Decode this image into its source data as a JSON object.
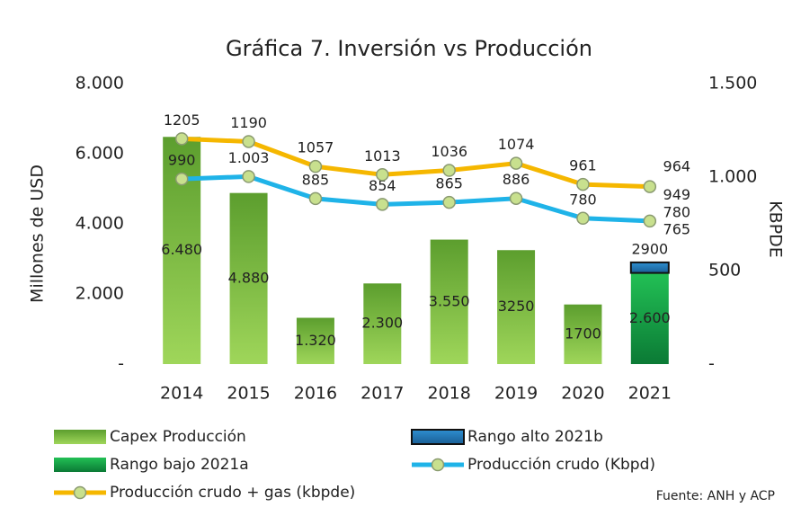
{
  "chart_data": {
    "type": "bar_line",
    "title": "Gráfica 7. Inversión vs Producción",
    "ylabel": "Millones de USD",
    "y2label": "KBPDE",
    "categories": [
      "2014",
      "2015",
      "2016",
      "2017",
      "2018",
      "2019",
      "2020",
      "2021"
    ],
    "ylim": [
      0,
      8000
    ],
    "yticks": [
      {
        "value": 0,
        "label": "-"
      },
      {
        "value": 2000,
        "label": "2.000"
      },
      {
        "value": 4000,
        "label": "4.000"
      },
      {
        "value": 6000,
        "label": "6.000"
      },
      {
        "value": 8000,
        "label": "8.000"
      }
    ],
    "y2lim": [
      0,
      1500
    ],
    "y2ticks": [
      {
        "value": 0,
        "label": "-"
      },
      500,
      {
        "value": 1000,
        "label": "1.000"
      },
      {
        "value": 1500,
        "label": "1.500"
      }
    ],
    "series": [
      {
        "name": "Capex Producción",
        "type": "bar",
        "color": "#7cc142",
        "values": [
          6480,
          4880,
          1320,
          2300,
          3550,
          3250,
          1700,
          null
        ],
        "value_labels": [
          "6.480",
          "4.880",
          "1.320",
          "2.300",
          "3.550",
          "3250",
          "1700",
          null
        ]
      },
      {
        "name": "Rango bajo 2021a",
        "type": "bar",
        "color": "#14a04a",
        "values": [
          null,
          null,
          null,
          null,
          null,
          null,
          null,
          2600
        ],
        "value_labels": [
          null,
          null,
          null,
          null,
          null,
          null,
          null,
          "2.600"
        ]
      },
      {
        "name": "Rango alto 2021b",
        "type": "bar",
        "color": "#1f75b5",
        "values": [
          null,
          null,
          null,
          null,
          null,
          null,
          null,
          300
        ]
      },
      {
        "name": "Producción crudo (Kbpd)",
        "type": "line",
        "axis": "y2",
        "color": "#1fb3e8",
        "values": [
          990,
          1003,
          885,
          854,
          865,
          886,
          780,
          765
        ],
        "value_labels": [
          "990",
          "1.003",
          "885",
          "854",
          "865",
          "886",
          "780",
          "765"
        ]
      },
      {
        "name": "Producción crudo + gas (kbpde)",
        "type": "line",
        "axis": "y2",
        "color": "#f5b700",
        "values": [
          1205,
          1190,
          1057,
          1013,
          1036,
          1074,
          961,
          949
        ]
      }
    ],
    "annotations": [
      "2900",
      "780",
      "964"
    ],
    "source": "Fuente: ANH y ACP"
  }
}
